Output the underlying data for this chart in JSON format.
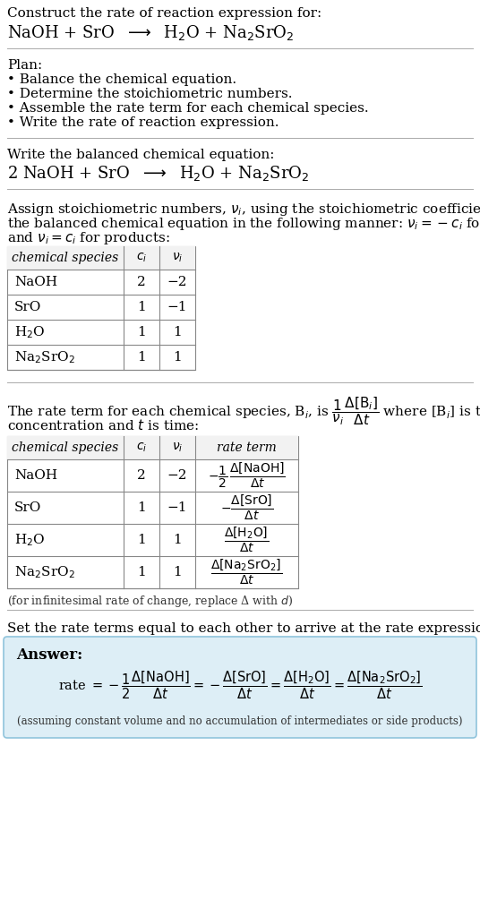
{
  "bg_color": "#ffffff",
  "text_color": "#000000",
  "answer_bg": "#ddeef6",
  "answer_border": "#90c4dc",
  "separator_color": "#aaaaaa",
  "title_text": "Construct the rate of reaction expression for:",
  "plan_header": "Plan:",
  "plan_items": [
    "• Balance the chemical equation.",
    "• Determine the stoichiometric numbers.",
    "• Assemble the rate term for each chemical species.",
    "• Write the rate of reaction expression."
  ],
  "balanced_header": "Write the balanced chemical equation:",
  "stoich_line1": "Assign stoichiometric numbers, $\\nu_i$, using the stoichiometric coefficients, $c_i$, from",
  "stoich_line2": "the balanced chemical equation in the following manner: $\\nu_i = -c_i$ for reactants",
  "stoich_line3": "and $\\nu_i = c_i$ for products:",
  "table1_species": [
    "NaOH",
    "SrO",
    "H$_2$O",
    "Na$_2$SrO$_2$"
  ],
  "table1_ci": [
    "2",
    "1",
    "1",
    "1"
  ],
  "table1_vi": [
    "−2",
    "−1",
    "1",
    "1"
  ],
  "rate_line1": "The rate term for each chemical species, B$_i$, is",
  "rate_line2": "concentration and $t$ is time:",
  "table2_species": [
    "NaOH",
    "SrO",
    "H$_2$O",
    "Na$_2$SrO$_2$"
  ],
  "table2_ci": [
    "2",
    "1",
    "1",
    "1"
  ],
  "table2_vi": [
    "−2",
    "−1",
    "1",
    "1"
  ],
  "infinitesimal_note": "(for infinitesimal rate of change, replace Δ with $d$)",
  "set_equal_text": "Set the rate terms equal to each other to arrive at the rate expression:",
  "answer_label": "Answer:",
  "assuming_note": "(assuming constant volume and no accumulation of intermediates or side products)"
}
